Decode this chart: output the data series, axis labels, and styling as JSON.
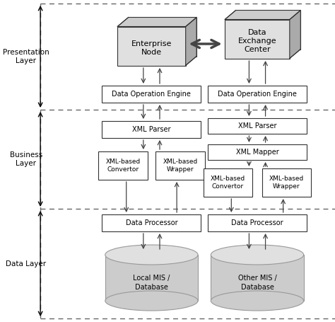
{
  "bg_color": "#ffffff",
  "box_fill": "#ffffff",
  "box_edge": "#333333",
  "dash_color": "#666666",
  "arrow_color": "#444444",
  "bidir_arrow_color": "#555555",
  "cube_front": "#e0e0e0",
  "cube_top": "#cccccc",
  "cube_side": "#aaaaaa",
  "cyl_body": "#cccccc",
  "cyl_top": "#e0e0e0",
  "cyl_edge": "#999999",
  "layer_labels": [
    "Presentation\nLayer",
    "Business\nLayer",
    "Data Layer"
  ],
  "figw": 4.74,
  "figh": 4.55,
  "dpi": 100
}
